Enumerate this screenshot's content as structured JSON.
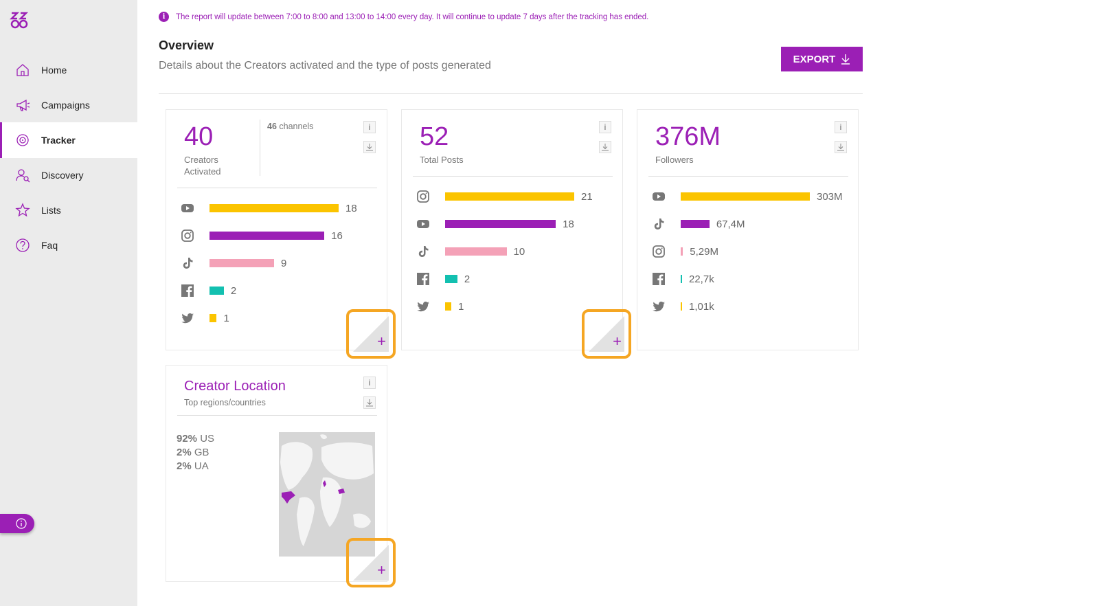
{
  "sidebar": {
    "items": [
      {
        "label": "Home",
        "icon": "home-icon"
      },
      {
        "label": "Campaigns",
        "icon": "megaphone-icon"
      },
      {
        "label": "Tracker",
        "icon": "target-icon",
        "active": true
      },
      {
        "label": "Discovery",
        "icon": "user-search-icon"
      },
      {
        "label": "Lists",
        "icon": "star-list-icon"
      },
      {
        "label": "Faq",
        "icon": "question-icon"
      }
    ]
  },
  "notice": "The report will update between 7:00 to 8:00 and 13:00 to 14:00 every day. It will continue to update 7 days after the tracking has ended.",
  "overview": {
    "title": "Overview",
    "subtitle": "Details about the Creators activated and the type of posts generated",
    "export_label": "EXPORT"
  },
  "cards": {
    "creators": {
      "value": "40",
      "caption_line1": "Creators",
      "caption_line2": "Activated",
      "channels_count": "46",
      "channels_label": "channels",
      "rows": [
        {
          "platform": "youtube",
          "value": "18",
          "num": 18,
          "color": "#fbc400"
        },
        {
          "platform": "instagram",
          "value": "16",
          "num": 16,
          "color": "#9b1fb5"
        },
        {
          "platform": "tiktok",
          "value": "9",
          "num": 9,
          "color": "#f4a1b7"
        },
        {
          "platform": "facebook",
          "value": "2",
          "num": 2,
          "color": "#13c0b0"
        },
        {
          "platform": "twitter",
          "value": "1",
          "num": 1,
          "color": "#fbc400"
        }
      ]
    },
    "posts": {
      "value": "52",
      "caption": "Total Posts",
      "rows": [
        {
          "platform": "instagram",
          "value": "21",
          "num": 21,
          "color": "#fbc400"
        },
        {
          "platform": "youtube",
          "value": "18",
          "num": 18,
          "color": "#9b1fb5"
        },
        {
          "platform": "tiktok",
          "value": "10",
          "num": 10,
          "color": "#f4a1b7"
        },
        {
          "platform": "facebook",
          "value": "2",
          "num": 2,
          "color": "#13c0b0"
        },
        {
          "platform": "twitter",
          "value": "1",
          "num": 1,
          "color": "#fbc400"
        }
      ]
    },
    "followers": {
      "value": "376M",
      "caption": "Followers",
      "rows": [
        {
          "platform": "youtube",
          "value": "303M",
          "num": 303,
          "color": "#fbc400"
        },
        {
          "platform": "tiktok",
          "value": "67,4M",
          "num": 67.4,
          "color": "#9b1fb5"
        },
        {
          "platform": "instagram",
          "value": "5,29M",
          "num": 5.29,
          "color": "#f4a1b7"
        },
        {
          "platform": "facebook",
          "value": "22,7k",
          "num": 0.0227,
          "color": "#13c0b0"
        },
        {
          "platform": "twitter",
          "value": "1,01k",
          "num": 0.00101,
          "color": "#fbc400"
        }
      ]
    },
    "location": {
      "title": "Creator Location",
      "subtitle": "Top regions/countries",
      "items": [
        {
          "pct": "92%",
          "code": "US"
        },
        {
          "pct": "2%",
          "code": "GB"
        },
        {
          "pct": "2%",
          "code": "UA"
        }
      ]
    }
  },
  "buttons": {
    "info": "i"
  },
  "colors": {
    "accent": "#9b1fb5",
    "highlight": "#f5a623"
  }
}
